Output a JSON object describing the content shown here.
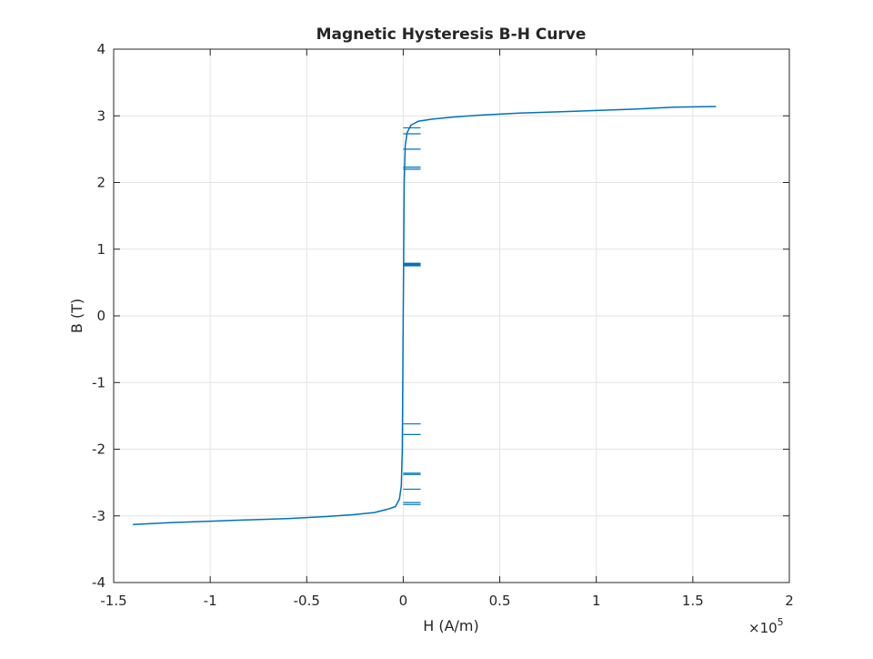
{
  "chart_data": {
    "type": "line",
    "title": "Magnetic Hysteresis B-H Curve",
    "xlabel": "H (A/m)",
    "ylabel": "B (T)",
    "x_exponent_label": "×10",
    "x_exponent_power": "5",
    "x_scale_factor": 100000,
    "xlim": [
      -1.5,
      2
    ],
    "ylim": [
      -4,
      4
    ],
    "xticks": [
      -1.5,
      -1,
      -0.5,
      0,
      0.5,
      1,
      1.5,
      2
    ],
    "xtick_labels": [
      "-1.5",
      "-1",
      "-0.5",
      "0",
      "0.5",
      "1",
      "1.5",
      "2"
    ],
    "yticks": [
      -4,
      -3,
      -2,
      -1,
      0,
      1,
      2,
      3,
      4
    ],
    "ytick_labels": [
      "-4",
      "-3",
      "-2",
      "-1",
      "0",
      "1",
      "2",
      "3",
      "4"
    ],
    "grid": true,
    "legend": "none",
    "series_color": "#0072BD",
    "series": [
      {
        "x": [
          -1.4,
          -1.2,
          -1.0,
          -0.8,
          -0.6,
          -0.4,
          -0.25,
          -0.15,
          -0.08,
          -0.04,
          -0.02,
          -0.01,
          -0.005,
          0.0,
          0.005,
          0.01,
          0.02,
          0.04,
          0.08,
          0.15,
          0.25,
          0.4,
          0.6,
          0.8,
          1.0,
          1.2,
          1.4,
          1.62
        ],
        "y": [
          -3.13,
          -3.1,
          -3.08,
          -3.06,
          -3.04,
          -3.01,
          -2.98,
          -2.95,
          -2.9,
          -2.86,
          -2.75,
          -2.55,
          -2.0,
          0.0,
          2.0,
          2.55,
          2.75,
          2.86,
          2.92,
          2.95,
          2.98,
          3.01,
          3.04,
          3.06,
          3.08,
          3.1,
          3.13,
          3.14
        ]
      }
    ],
    "switching_jumps": {
      "x_from": [
        0.0,
        0.0,
        0.0,
        0.0,
        0.0,
        0.0,
        0.0,
        0.0,
        0.0,
        0.0,
        0.0,
        0.0,
        0.0
      ],
      "x_to": [
        0.09,
        0.09,
        0.09,
        0.09,
        0.09,
        0.09,
        0.09,
        0.09,
        0.09,
        0.09,
        0.09,
        0.09,
        0.09
      ],
      "y": [
        2.82,
        2.73,
        2.5,
        2.23,
        2.2,
        0.77,
        -1.62,
        -1.78,
        -2.36,
        -2.38,
        -2.6,
        -2.8,
        -2.83
      ]
    }
  }
}
